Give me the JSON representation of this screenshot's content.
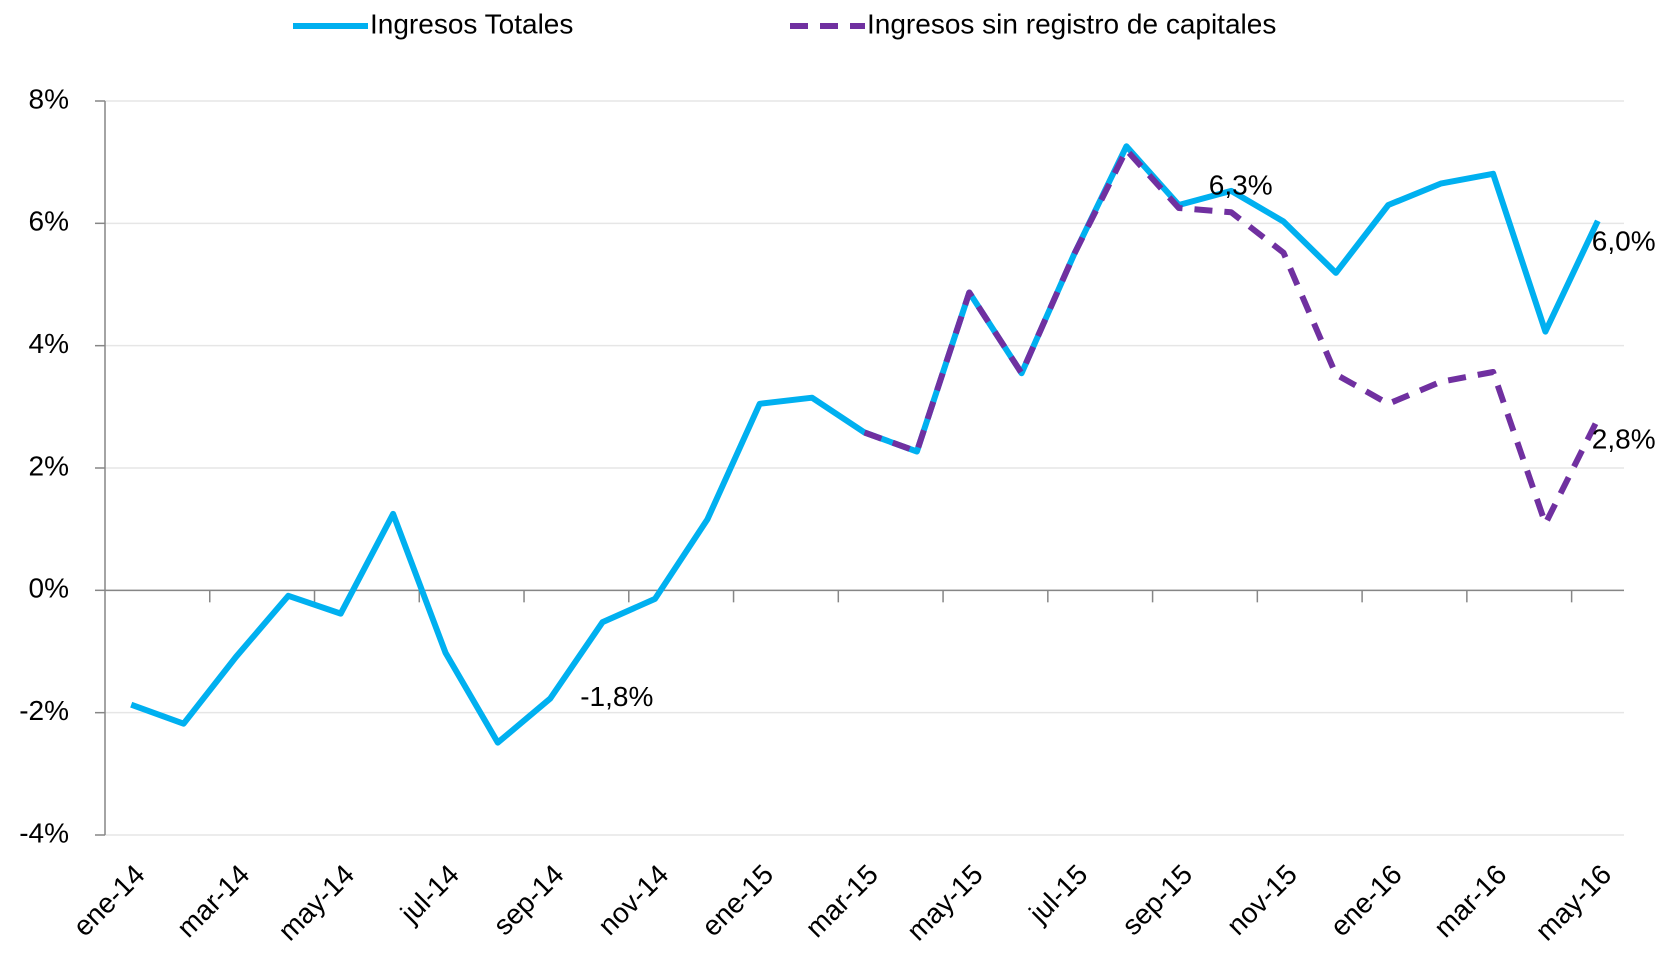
{
  "chart_data": {
    "type": "line",
    "categories": [
      "ene-14",
      null,
      "mar-14",
      null,
      "may-14",
      null,
      "jul-14",
      null,
      "sep-14",
      null,
      "nov-14",
      null,
      "ene-15",
      null,
      "mar-15",
      null,
      "may-15",
      null,
      "jul-15",
      null,
      "sep-15",
      null,
      "nov-15",
      null,
      "ene-16",
      null,
      "mar-16",
      null,
      "may-16"
    ],
    "series": [
      {
        "name": "Ingresos Totales",
        "color": "#00b0f0",
        "values": [
          -1.87,
          -2.18,
          -1.09,
          -0.09,
          -0.38,
          1.25,
          -1.02,
          -2.49,
          -1.77,
          -0.52,
          -0.14,
          1.16,
          3.05,
          3.15,
          2.58,
          2.27,
          4.87,
          3.55,
          5.49,
          7.26,
          6.3,
          6.53,
          6.03,
          5.19,
          6.3,
          6.65,
          6.81,
          4.23,
          6.04
        ],
        "value_labels": [
          null,
          null,
          null,
          null,
          null,
          null,
          null,
          null,
          "-1,8%",
          null,
          null,
          null,
          null,
          null,
          null,
          null,
          null,
          null,
          null,
          null,
          "6,3%",
          null,
          null,
          null,
          null,
          null,
          null,
          null,
          "6,0%"
        ]
      },
      {
        "name": "Ingresos sin registro de capitales",
        "color": "#7030a0",
        "dashed": true,
        "values": [
          null,
          null,
          null,
          null,
          null,
          null,
          null,
          null,
          null,
          null,
          null,
          null,
          null,
          null,
          2.58,
          2.27,
          4.87,
          3.55,
          5.49,
          7.2,
          6.25,
          6.18,
          5.52,
          3.53,
          3.05,
          3.41,
          3.57,
          1.09,
          2.8
        ],
        "value_labels": [
          null,
          null,
          null,
          null,
          null,
          null,
          null,
          null,
          null,
          null,
          null,
          null,
          null,
          null,
          null,
          null,
          null,
          null,
          null,
          null,
          null,
          null,
          null,
          null,
          null,
          null,
          null,
          null,
          "2,8%"
        ]
      }
    ],
    "ylim": [
      -4,
      8
    ],
    "yticks": [
      {
        "value": -4,
        "label": "-4%"
      },
      {
        "value": -2,
        "label": "-2%"
      },
      {
        "value": 0,
        "label": "0%"
      },
      {
        "value": 2,
        "label": "2%"
      },
      {
        "value": 4,
        "label": "4%"
      },
      {
        "value": 6,
        "label": "6%"
      },
      {
        "value": 8,
        "label": "8%"
      }
    ],
    "grid": true,
    "legend": "top"
  }
}
